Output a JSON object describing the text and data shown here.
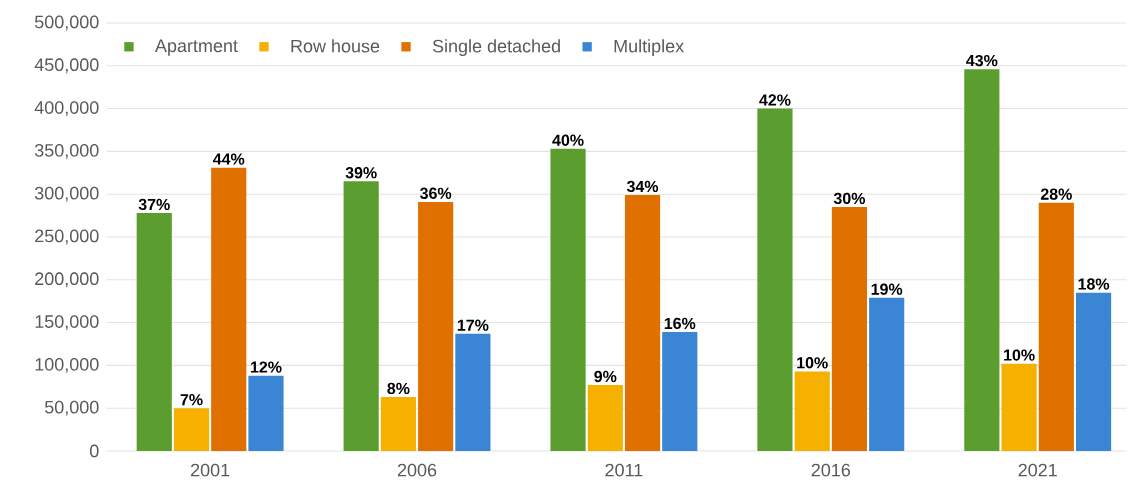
{
  "chart_data": {
    "type": "bar",
    "categories": [
      "2001",
      "2006",
      "2011",
      "2016",
      "2021"
    ],
    "series": [
      {
        "name": "Apartment",
        "color": "#5b9e2f",
        "values": [
          278000,
          315000,
          353000,
          400000,
          446000
        ]
      },
      {
        "name": "Row house",
        "color": "#f5b000",
        "values": [
          50000,
          63000,
          77000,
          93000,
          102000
        ]
      },
      {
        "name": "Single detached",
        "color": "#e07000",
        "values": [
          331000,
          291000,
          299000,
          285000,
          290000
        ]
      },
      {
        "name": "Multiplex",
        "color": "#3a86d4",
        "values": [
          88000,
          137000,
          139000,
          179000,
          185000
        ]
      }
    ],
    "annotations": [
      "37%",
      "39%",
      "40%",
      "42%",
      "43%",
      "7%",
      "8%",
      "9%",
      "10%",
      "10%",
      "44%",
      "36%",
      "34%",
      "30%",
      "28%",
      "12%",
      "17%",
      "16%",
      "19%",
      "18%"
    ],
    "ylim": [
      0,
      500000
    ],
    "yticks": [
      {
        "value": 0,
        "label": "0"
      },
      {
        "value": 50000,
        "label": "50,000"
      },
      {
        "value": 100000,
        "label": "100,000"
      },
      {
        "value": 150000,
        "label": "150,000"
      },
      {
        "value": 200000,
        "label": "200,000"
      },
      {
        "value": 250000,
        "label": "250,000"
      },
      {
        "value": 300000,
        "label": "300,000"
      },
      {
        "value": 350000,
        "label": "350,000"
      },
      {
        "value": 400000,
        "label": "400,000"
      },
      {
        "value": 450000,
        "label": "450,000"
      },
      {
        "value": 500000,
        "label": "500,000"
      }
    ],
    "grid": "y",
    "legend": "top left"
  }
}
